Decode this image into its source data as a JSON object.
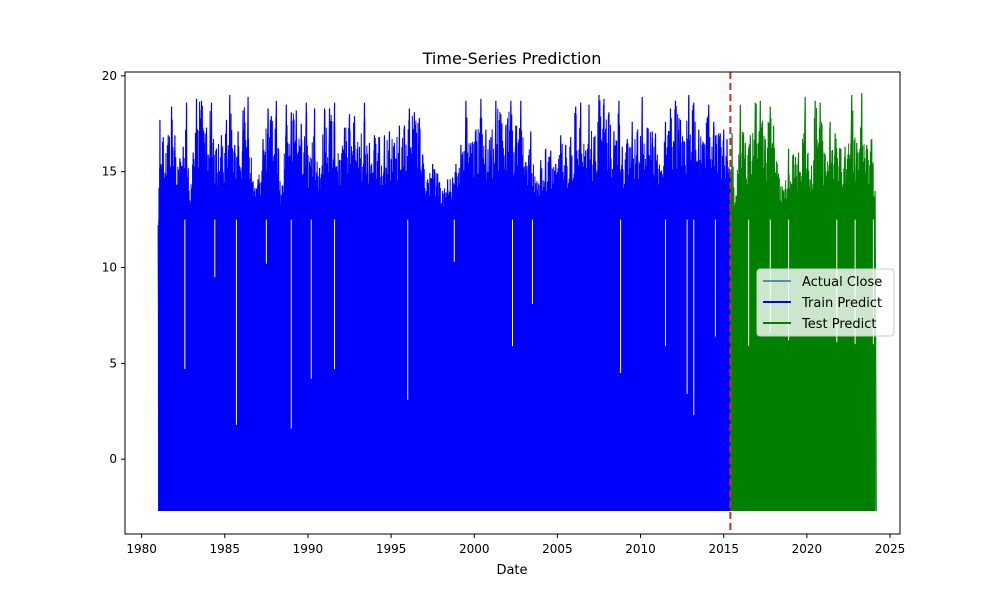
{
  "chart_data": {
    "type": "line",
    "title": "Time-Series Prediction",
    "xlabel": "Date",
    "ylabel": "",
    "xlim": [
      1979.0,
      2025.6
    ],
    "ylim": [
      -3.9,
      20.2
    ],
    "x_ticks": [
      1980,
      1985,
      1990,
      1995,
      2000,
      2005,
      2010,
      2015,
      2020,
      2025
    ],
    "y_ticks": [
      0,
      5,
      10,
      15,
      20
    ],
    "grid": false,
    "legend_position": "center-right",
    "split_date": 2015.4,
    "split_line_color": "#d62728",
    "series": [
      {
        "name": "Actual Close",
        "color": "#1f77b4",
        "x_range": [
          1981.0,
          2024.1
        ],
        "y_min": -2.7,
        "y_max": 19.0,
        "visible": "hidden beneath predictions"
      },
      {
        "name": "Train Predict",
        "color": "#0000ff",
        "x_range": [
          1981.0,
          2015.4
        ],
        "y_min": -2.7,
        "y_max": 19.0,
        "upper_envelope": [
          [
            1981.0,
            12.2
          ],
          [
            1981.1,
            17.7
          ],
          [
            1981.3,
            16.8
          ],
          [
            1981.6,
            16.9
          ],
          [
            1981.8,
            18.4
          ],
          [
            1982.0,
            16.9
          ],
          [
            1982.3,
            15.7
          ],
          [
            1982.5,
            16.3
          ],
          [
            1982.7,
            18.6
          ],
          [
            1982.9,
            13.5
          ],
          [
            1983.1,
            16.0
          ],
          [
            1983.3,
            18.8
          ],
          [
            1983.6,
            18.7
          ],
          [
            1983.9,
            17.3
          ],
          [
            1984.2,
            18.6
          ],
          [
            1984.5,
            16.2
          ],
          [
            1984.8,
            16.9
          ],
          [
            1985.1,
            17.7
          ],
          [
            1985.3,
            19.0
          ],
          [
            1985.6,
            16.4
          ],
          [
            1985.8,
            17.1
          ],
          [
            1986.1,
            18.2
          ],
          [
            1986.4,
            18.9
          ],
          [
            1986.7,
            14.5
          ],
          [
            1987.0,
            14.6
          ],
          [
            1987.3,
            16.7
          ],
          [
            1987.6,
            18.3
          ],
          [
            1987.8,
            17.9
          ],
          [
            1988.1,
            18.7
          ],
          [
            1988.4,
            13.8
          ],
          [
            1988.7,
            18.5
          ],
          [
            1989.0,
            18.1
          ],
          [
            1989.3,
            18.2
          ],
          [
            1989.6,
            17.5
          ],
          [
            1989.9,
            18.6
          ],
          [
            1990.1,
            15.5
          ],
          [
            1990.4,
            18.3
          ],
          [
            1990.7,
            15.2
          ],
          [
            1991.0,
            18.3
          ],
          [
            1991.3,
            18.3
          ],
          [
            1991.6,
            18.6
          ],
          [
            1991.9,
            15.6
          ],
          [
            1992.2,
            17.3
          ],
          [
            1992.5,
            18.0
          ],
          [
            1992.8,
            17.9
          ],
          [
            1993.1,
            16.3
          ],
          [
            1993.4,
            18.6
          ],
          [
            1993.7,
            16.5
          ],
          [
            1994.0,
            16.9
          ],
          [
            1994.3,
            16.8
          ],
          [
            1994.6,
            16.9
          ],
          [
            1994.9,
            17.1
          ],
          [
            1995.2,
            16.5
          ],
          [
            1995.5,
            17.4
          ],
          [
            1995.8,
            17.4
          ],
          [
            1996.1,
            18.3
          ],
          [
            1996.4,
            18.1
          ],
          [
            1996.7,
            17.8
          ],
          [
            1996.9,
            15.9
          ],
          [
            1997.2,
            14.6
          ],
          [
            1997.5,
            15.4
          ],
          [
            1997.8,
            14.9
          ],
          [
            1998.1,
            14.0
          ],
          [
            1998.4,
            14.6
          ],
          [
            1998.7,
            14.7
          ],
          [
            1998.9,
            15.4
          ],
          [
            1999.2,
            16.4
          ],
          [
            1999.5,
            18.7
          ],
          [
            1999.8,
            16.5
          ],
          [
            2000.1,
            17.2
          ],
          [
            2000.4,
            18.8
          ],
          [
            2000.7,
            17.2
          ],
          [
            2001.0,
            16.8
          ],
          [
            2001.3,
            18.7
          ],
          [
            2001.6,
            18.0
          ],
          [
            2001.9,
            17.4
          ],
          [
            2002.2,
            18.7
          ],
          [
            2002.5,
            17.4
          ],
          [
            2002.8,
            18.7
          ],
          [
            2003.1,
            15.5
          ],
          [
            2003.4,
            17.1
          ],
          [
            2003.7,
            14.4
          ],
          [
            2004.0,
            15.6
          ],
          [
            2004.3,
            16.2
          ],
          [
            2004.6,
            16.1
          ],
          [
            2004.9,
            15.4
          ],
          [
            2005.2,
            16.9
          ],
          [
            2005.5,
            16.4
          ],
          [
            2005.8,
            16.8
          ],
          [
            2006.1,
            18.4
          ],
          [
            2006.4,
            18.6
          ],
          [
            2006.7,
            16.1
          ],
          [
            2006.9,
            18.5
          ],
          [
            2007.2,
            16.8
          ],
          [
            2007.5,
            19.0
          ],
          [
            2007.8,
            18.8
          ],
          [
            2008.1,
            18.1
          ],
          [
            2008.4,
            17.1
          ],
          [
            2008.7,
            18.7
          ],
          [
            2008.9,
            16.3
          ],
          [
            2009.2,
            16.7
          ],
          [
            2009.5,
            17.6
          ],
          [
            2009.8,
            17.1
          ],
          [
            2010.1,
            18.9
          ],
          [
            2010.4,
            17.3
          ],
          [
            2010.7,
            17.1
          ],
          [
            2010.9,
            17.0
          ],
          [
            2011.2,
            15.0
          ],
          [
            2011.5,
            17.6
          ],
          [
            2011.8,
            18.3
          ],
          [
            2012.1,
            18.7
          ],
          [
            2012.4,
            17.7
          ],
          [
            2012.6,
            16.6
          ],
          [
            2012.9,
            19.0
          ],
          [
            2013.2,
            18.6
          ],
          [
            2013.5,
            17.2
          ],
          [
            2013.8,
            16.5
          ],
          [
            2014.1,
            18.5
          ],
          [
            2014.4,
            17.6
          ],
          [
            2014.7,
            17.0
          ],
          [
            2015.0,
            17.2
          ],
          [
            2015.2,
            16.7
          ],
          [
            2015.4,
            14.9
          ]
        ],
        "dips": [
          [
            1982.6,
            4.7
          ],
          [
            1984.4,
            9.5
          ],
          [
            1985.7,
            1.8
          ],
          [
            1987.5,
            10.2
          ],
          [
            1989.0,
            1.6
          ],
          [
            1990.2,
            4.2
          ],
          [
            1991.6,
            4.7
          ],
          [
            1996.0,
            3.1
          ],
          [
            1998.8,
            10.3
          ],
          [
            2002.3,
            5.9
          ],
          [
            2003.5,
            8.1
          ],
          [
            2008.8,
            4.5
          ],
          [
            2011.5,
            5.9
          ],
          [
            2012.8,
            3.4
          ],
          [
            2013.2,
            2.3
          ],
          [
            2014.5,
            6.4
          ]
        ]
      },
      {
        "name": "Test Predict",
        "color": "#008000",
        "x_range": [
          2015.4,
          2024.1
        ],
        "y_min": -2.7,
        "y_max": 19.1,
        "upper_envelope": [
          [
            2015.4,
            13.9
          ],
          [
            2015.5,
            17.0
          ],
          [
            2015.7,
            13.4
          ],
          [
            2016.0,
            18.5
          ],
          [
            2016.3,
            16.5
          ],
          [
            2016.6,
            16.9
          ],
          [
            2016.9,
            18.6
          ],
          [
            2017.2,
            18.7
          ],
          [
            2017.5,
            16.7
          ],
          [
            2017.8,
            18.4
          ],
          [
            2018.0,
            17.4
          ],
          [
            2018.3,
            14.9
          ],
          [
            2018.6,
            14.0
          ],
          [
            2018.9,
            16.2
          ],
          [
            2019.2,
            15.9
          ],
          [
            2019.5,
            16.0
          ],
          [
            2019.9,
            18.9
          ],
          [
            2020.2,
            14.6
          ],
          [
            2020.5,
            18.7
          ],
          [
            2020.8,
            18.6
          ],
          [
            2021.1,
            15.9
          ],
          [
            2021.4,
            17.6
          ],
          [
            2021.7,
            17.0
          ],
          [
            2022.0,
            16.2
          ],
          [
            2022.3,
            16.3
          ],
          [
            2022.7,
            19.0
          ],
          [
            2023.0,
            16.5
          ],
          [
            2023.3,
            19.1
          ],
          [
            2023.6,
            16.4
          ],
          [
            2023.9,
            16.7
          ],
          [
            2024.1,
            14.0
          ]
        ],
        "dips": [
          [
            2016.5,
            5.9
          ],
          [
            2017.8,
            6.6
          ],
          [
            2018.9,
            6.2
          ],
          [
            2021.8,
            6.1
          ],
          [
            2022.9,
            6.0
          ],
          [
            2024.0,
            6.0
          ]
        ]
      }
    ]
  }
}
